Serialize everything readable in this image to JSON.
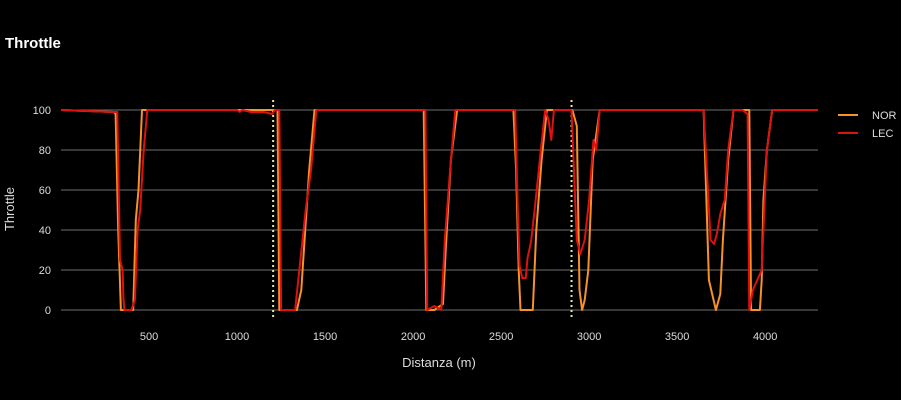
{
  "chart_data": {
    "type": "line",
    "title": "Throttle",
    "xlabel": "Distanza (m)",
    "ylabel": "Throttle",
    "xlim": [
      0,
      4300
    ],
    "ylim": [
      -5,
      105
    ],
    "x_ticks": [
      500,
      1000,
      1500,
      2000,
      2500,
      3000,
      3500,
      4000
    ],
    "y_ticks": [
      0,
      20,
      40,
      60,
      80,
      100
    ],
    "grid": "horizontal",
    "legend_position": "right",
    "vlines": [
      {
        "x": 1205,
        "color": "#E8E89A",
        "style": "dotted"
      },
      {
        "x": 2900,
        "color": "#E8E89A",
        "style": "dotted"
      }
    ],
    "series": [
      {
        "name": "NOR",
        "color": "#F5922A",
        "points": [
          [
            0,
            100
          ],
          [
            300,
            99
          ],
          [
            310,
            98
          ],
          [
            325,
            40
          ],
          [
            340,
            0
          ],
          [
            380,
            0
          ],
          [
            390,
            0
          ],
          [
            410,
            0
          ],
          [
            425,
            45
          ],
          [
            440,
            60
          ],
          [
            460,
            100
          ],
          [
            480,
            100
          ],
          [
            1000,
            100
          ],
          [
            1200,
            100
          ],
          [
            1215,
            100
          ],
          [
            1230,
            100
          ],
          [
            1240,
            0
          ],
          [
            1280,
            0
          ],
          [
            1340,
            0
          ],
          [
            1365,
            10
          ],
          [
            1380,
            30
          ],
          [
            1410,
            70
          ],
          [
            1440,
            100
          ],
          [
            2000,
            100
          ],
          [
            2060,
            100
          ],
          [
            2075,
            0
          ],
          [
            2120,
            0
          ],
          [
            2170,
            3
          ],
          [
            2185,
            30
          ],
          [
            2215,
            75
          ],
          [
            2250,
            100
          ],
          [
            2540,
            100
          ],
          [
            2570,
            100
          ],
          [
            2585,
            70
          ],
          [
            2600,
            20
          ],
          [
            2610,
            0
          ],
          [
            2660,
            0
          ],
          [
            2680,
            0
          ],
          [
            2700,
            40
          ],
          [
            2730,
            75
          ],
          [
            2760,
            100
          ],
          [
            2830,
            100
          ],
          [
            2870,
            100
          ],
          [
            2905,
            100
          ],
          [
            2930,
            92
          ],
          [
            2945,
            10
          ],
          [
            2960,
            0
          ],
          [
            2975,
            5
          ],
          [
            2995,
            20
          ],
          [
            3020,
            75
          ],
          [
            3060,
            100
          ],
          [
            3600,
            100
          ],
          [
            3650,
            100
          ],
          [
            3680,
            15
          ],
          [
            3720,
            0
          ],
          [
            3745,
            8
          ],
          [
            3760,
            35
          ],
          [
            3790,
            75
          ],
          [
            3820,
            100
          ],
          [
            3880,
            100
          ],
          [
            3910,
            100
          ],
          [
            3920,
            0
          ],
          [
            3970,
            0
          ],
          [
            3980,
            15
          ],
          [
            3990,
            55
          ],
          [
            4010,
            80
          ],
          [
            4040,
            100
          ],
          [
            4300,
            100
          ]
        ]
      },
      {
        "name": "LEC",
        "color": "#DD1111",
        "points": [
          [
            0,
            100
          ],
          [
            300,
            99
          ],
          [
            320,
            99
          ],
          [
            335,
            25
          ],
          [
            350,
            20
          ],
          [
            355,
            5
          ],
          [
            360,
            0
          ],
          [
            380,
            0
          ],
          [
            400,
            0
          ],
          [
            420,
            5
          ],
          [
            435,
            40
          ],
          [
            450,
            50
          ],
          [
            470,
            80
          ],
          [
            490,
            100
          ],
          [
            1000,
            100
          ],
          [
            1015,
            99
          ],
          [
            1030,
            100
          ],
          [
            1080,
            99
          ],
          [
            1150,
            99
          ],
          [
            1200,
            98
          ],
          [
            1215,
            100
          ],
          [
            1240,
            100
          ],
          [
            1250,
            0
          ],
          [
            1290,
            0
          ],
          [
            1310,
            0
          ],
          [
            1330,
            0
          ],
          [
            1360,
            25
          ],
          [
            1390,
            50
          ],
          [
            1420,
            70
          ],
          [
            1450,
            100
          ],
          [
            2000,
            100
          ],
          [
            2070,
            100
          ],
          [
            2080,
            0
          ],
          [
            2120,
            2
          ],
          [
            2160,
            0
          ],
          [
            2180,
            35
          ],
          [
            2210,
            70
          ],
          [
            2240,
            100
          ],
          [
            2540,
            100
          ],
          [
            2580,
            100
          ],
          [
            2595,
            50
          ],
          [
            2605,
            22
          ],
          [
            2620,
            16
          ],
          [
            2640,
            16
          ],
          [
            2650,
            26
          ],
          [
            2670,
            34
          ],
          [
            2690,
            50
          ],
          [
            2720,
            75
          ],
          [
            2750,
            100
          ],
          [
            2770,
            95
          ],
          [
            2785,
            85
          ],
          [
            2800,
            100
          ],
          [
            2860,
            100
          ],
          [
            2900,
            100
          ],
          [
            2930,
            35
          ],
          [
            2950,
            28
          ],
          [
            2975,
            35
          ],
          [
            3000,
            55
          ],
          [
            3025,
            85
          ],
          [
            3040,
            80
          ],
          [
            3060,
            100
          ],
          [
            3600,
            100
          ],
          [
            3650,
            100
          ],
          [
            3690,
            35
          ],
          [
            3710,
            33
          ],
          [
            3725,
            38
          ],
          [
            3745,
            48
          ],
          [
            3770,
            55
          ],
          [
            3790,
            80
          ],
          [
            3820,
            100
          ],
          [
            3870,
            100
          ],
          [
            3900,
            98
          ],
          [
            3910,
            0
          ],
          [
            3930,
            10
          ],
          [
            3950,
            14
          ],
          [
            3980,
            20
          ],
          [
            4010,
            80
          ],
          [
            4040,
            100
          ],
          [
            4300,
            100
          ]
        ]
      }
    ]
  }
}
